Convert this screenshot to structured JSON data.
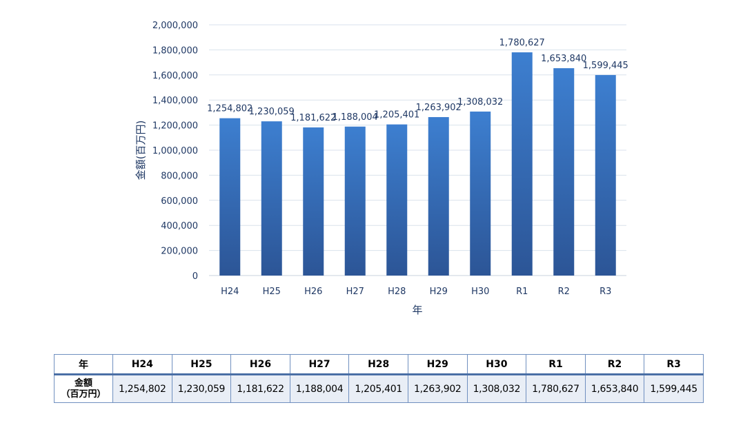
{
  "chart_data": {
    "type": "bar",
    "categories": [
      "H24",
      "H25",
      "H26",
      "H27",
      "H28",
      "H29",
      "H30",
      "R1",
      "R2",
      "R3"
    ],
    "values": [
      1254802,
      1230059,
      1181622,
      1188004,
      1205401,
      1263902,
      1308032,
      1780627,
      1653840,
      1599445
    ],
    "data_labels": [
      "1,254,802",
      "1,230,059",
      "1,181,622",
      "1,188,004",
      "1,205,401",
      "1,263,902",
      "1,308,032",
      "1,780,627",
      "1,653,840",
      "1,599,445"
    ],
    "xlabel": "年",
    "ylabel": "金額(百万円)",
    "ylim": [
      0,
      2000000
    ],
    "yticks": [
      "0",
      "200,000",
      "400,000",
      "600,000",
      "800,000",
      "1,000,000",
      "1,200,000",
      "1,400,000",
      "1,600,000",
      "1,800,000",
      "2,000,000"
    ],
    "grid": true,
    "legend": "none",
    "colors": {
      "bar_top": "#3d7fd0",
      "bar_bottom": "#2c5596",
      "text": "#1f3864"
    }
  },
  "table": {
    "header_label": "年",
    "row_label_line1": "金額",
    "row_label_line2": "（百万円）",
    "columns": [
      "H24",
      "H25",
      "H26",
      "H27",
      "H28",
      "H29",
      "H30",
      "R1",
      "R2",
      "R3"
    ],
    "values": [
      "1,254,802",
      "1,230,059",
      "1,181,622",
      "1,188,004",
      "1,205,401",
      "1,263,902",
      "1,308,032",
      "1,780,627",
      "1,653,840",
      "1,599,445"
    ]
  }
}
